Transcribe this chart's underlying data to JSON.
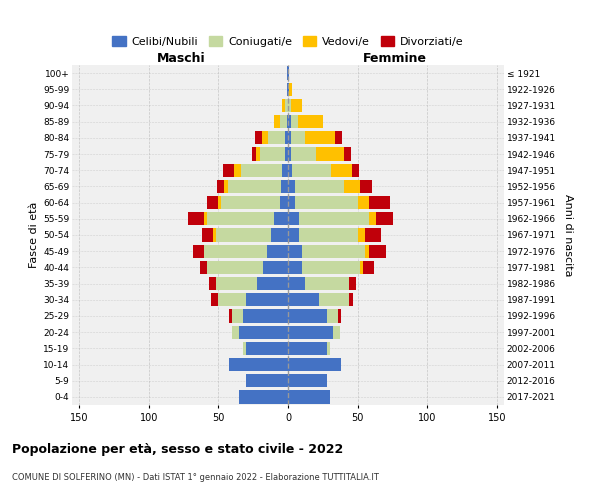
{
  "age_groups": [
    "0-4",
    "5-9",
    "10-14",
    "15-19",
    "20-24",
    "25-29",
    "30-34",
    "35-39",
    "40-44",
    "45-49",
    "50-54",
    "55-59",
    "60-64",
    "65-69",
    "70-74",
    "75-79",
    "80-84",
    "85-89",
    "90-94",
    "95-99",
    "100+"
  ],
  "birth_years": [
    "2017-2021",
    "2012-2016",
    "2007-2011",
    "2002-2006",
    "1997-2001",
    "1992-1996",
    "1987-1991",
    "1982-1986",
    "1977-1981",
    "1972-1976",
    "1967-1971",
    "1962-1966",
    "1957-1961",
    "1952-1956",
    "1947-1951",
    "1942-1946",
    "1937-1941",
    "1932-1936",
    "1927-1931",
    "1922-1926",
    "≤ 1921"
  ],
  "male": {
    "celibi": [
      35,
      30,
      42,
      30,
      35,
      32,
      30,
      22,
      18,
      15,
      12,
      10,
      6,
      5,
      4,
      2,
      2,
      1,
      0,
      1,
      1
    ],
    "coniugati": [
      0,
      0,
      0,
      2,
      5,
      8,
      20,
      30,
      40,
      45,
      40,
      48,
      42,
      38,
      30,
      18,
      12,
      5,
      2,
      0,
      0
    ],
    "vedovi": [
      0,
      0,
      0,
      0,
      0,
      0,
      0,
      0,
      0,
      0,
      2,
      2,
      2,
      3,
      5,
      3,
      5,
      4,
      2,
      0,
      0
    ],
    "divorziati": [
      0,
      0,
      0,
      0,
      0,
      2,
      5,
      5,
      5,
      8,
      8,
      12,
      8,
      5,
      8,
      3,
      5,
      0,
      0,
      0,
      0
    ]
  },
  "female": {
    "nubili": [
      30,
      28,
      38,
      28,
      32,
      28,
      22,
      12,
      10,
      10,
      8,
      8,
      5,
      5,
      3,
      2,
      2,
      2,
      0,
      1,
      1
    ],
    "coniugate": [
      0,
      0,
      0,
      2,
      5,
      8,
      22,
      32,
      42,
      45,
      42,
      50,
      45,
      35,
      28,
      18,
      10,
      5,
      2,
      0,
      0
    ],
    "vedove": [
      0,
      0,
      0,
      0,
      0,
      0,
      0,
      0,
      2,
      3,
      5,
      5,
      8,
      12,
      15,
      20,
      22,
      18,
      8,
      2,
      0
    ],
    "divorziate": [
      0,
      0,
      0,
      0,
      0,
      2,
      3,
      5,
      8,
      12,
      12,
      12,
      15,
      8,
      5,
      5,
      5,
      0,
      0,
      0,
      0
    ]
  },
  "colors": {
    "celibi": "#4472C4",
    "coniugati": "#c5d9a0",
    "vedovi": "#ffc000",
    "divorziati": "#c0000a"
  },
  "xlim": 155,
  "title": "Popolazione per età, sesso e stato civile - 2022",
  "subtitle": "COMUNE DI SOLFERINO (MN) - Dati ISTAT 1° gennaio 2022 - Elaborazione TUTTITALIA.IT",
  "xlabel_left": "Maschi",
  "xlabel_right": "Femmine",
  "ylabel_left": "Fasce di età",
  "ylabel_right": "Anni di nascita",
  "legend_labels": [
    "Celibi/Nubili",
    "Coniugati/e",
    "Vedovi/e",
    "Divorziati/e"
  ]
}
